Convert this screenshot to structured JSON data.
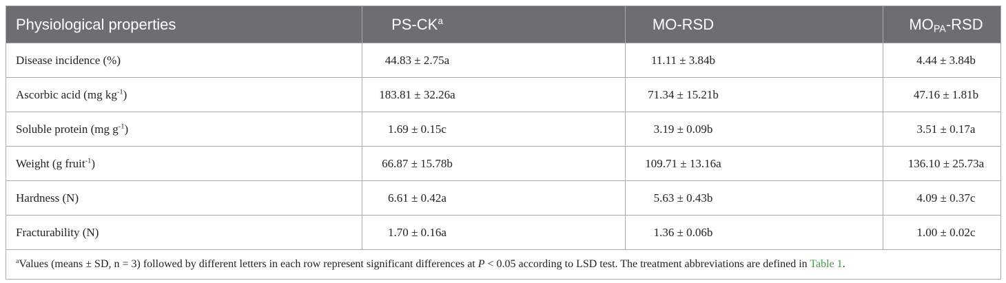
{
  "table": {
    "header": [
      {
        "text": "Physiological properties"
      },
      {
        "text": "PS-CK",
        "sup": "a"
      },
      {
        "text": "MO-RSD"
      },
      {
        "text": "MO",
        "sub": "PA",
        "tail": "-RSD"
      }
    ],
    "rows": [
      [
        {
          "text": "Disease incidence (%)"
        },
        "44.83 ± 2.75a",
        "11.11 ± 3.84b",
        "4.44 ± 3.84b"
      ],
      [
        {
          "text": "Ascorbic acid (mg kg",
          "sup": "-1",
          "tail": ")"
        },
        "183.81 ± 32.26a",
        "71.34 ± 15.21b",
        "47.16 ± 1.81b"
      ],
      [
        {
          "text": "Soluble protein (mg g",
          "sup": "-1",
          "tail": ")"
        },
        "1.69 ± 0.15c",
        "3.19 ± 0.09b",
        "3.51 ± 0.17a"
      ],
      [
        {
          "text": "Weight (g fruit",
          "sup": "-1",
          "tail": ")"
        },
        "66.87 ± 15.78b",
        "109.71 ± 13.16a",
        "136.10 ± 25.73a"
      ],
      [
        {
          "text": "Hardness (N)"
        },
        "6.61 ± 0.42a",
        "5.63 ± 0.43b",
        "4.09 ± 0.37c"
      ],
      [
        {
          "text": "Fracturability (N)"
        },
        "1.70 ± 0.16a",
        "1.36 ± 0.06b",
        "1.00 ± 0.02c"
      ]
    ],
    "footnote": {
      "sup": "a",
      "text": "Values (means ± SD, n = 3) followed by different letters in each row represent significant differences at ",
      "italic": "P",
      "text2": " < 0.05 according to LSD test. The treatment abbreviations are defined in ",
      "link": "Table 1",
      "end": "."
    }
  }
}
